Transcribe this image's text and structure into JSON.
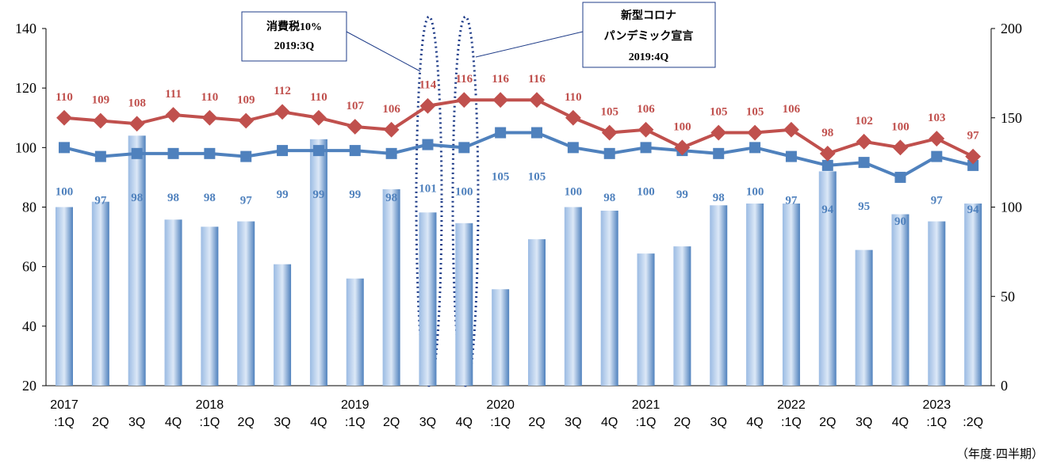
{
  "chart_data": {
    "type": "combo",
    "categories": [
      "2017\n:1Q",
      "2Q",
      "3Q",
      "4Q",
      "2018\n:1Q",
      "2Q",
      "3Q",
      "4Q",
      "2019\n:1Q",
      "2Q",
      "3Q",
      "4Q",
      "2020\n:1Q",
      "2Q",
      "3Q",
      "4Q",
      "2021\n:1Q",
      "2Q",
      "3Q",
      "4Q",
      "2022\n:1Q",
      "2Q",
      "3Q",
      "4Q",
      "2023\n:1Q",
      ":2Q"
    ],
    "series": [
      {
        "name": "bars",
        "type": "bar",
        "axis": "y2",
        "color": "#4f81bd",
        "values": [
          100,
          103,
          140,
          93,
          89,
          92,
          68,
          138,
          60,
          110,
          97,
          91,
          54,
          82,
          100,
          98,
          74,
          78,
          101,
          102,
          102,
          120,
          76,
          96,
          92,
          102
        ]
      },
      {
        "name": "blue",
        "type": "line",
        "color": "#4f81bd",
        "values": [
          100,
          97,
          98,
          98,
          98,
          97,
          99,
          99,
          99,
          98,
          101,
          100,
          105,
          105,
          100,
          98,
          100,
          99,
          98,
          100,
          97,
          94,
          95,
          90,
          97,
          94
        ]
      },
      {
        "name": "red",
        "type": "line",
        "color": "#c0504d",
        "values": [
          110,
          109,
          108,
          111,
          110,
          109,
          112,
          110,
          107,
          106,
          114,
          116,
          116,
          116,
          110,
          105,
          106,
          100,
          105,
          105,
          106,
          98,
          102,
          100,
          103,
          97
        ]
      }
    ],
    "ylim": [
      20,
      140
    ],
    "yticks": [
      20,
      40,
      60,
      80,
      100,
      120,
      140
    ],
    "y2lim": [
      0,
      200
    ],
    "y2ticks": [
      0,
      50,
      100,
      150,
      200
    ],
    "annotations": [
      {
        "lines": [
          "消費税10%",
          "2019:3Q"
        ]
      },
      {
        "lines": [
          "新型コロナ",
          "パンデミック宣言",
          "2019:4Q"
        ]
      }
    ],
    "x_label": "（年度·四半期）"
  }
}
